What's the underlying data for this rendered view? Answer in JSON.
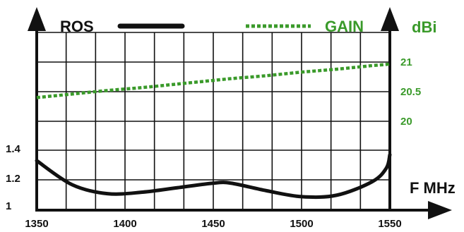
{
  "chart_data": {
    "type": "line",
    "x": [
      1350,
      1370,
      1390,
      1410,
      1430,
      1450,
      1460,
      1480,
      1500,
      1520,
      1540,
      1548,
      1550
    ],
    "series": [
      {
        "name": "ROS",
        "axis": "left",
        "color": "#111111",
        "style": "solid",
        "values": [
          1.33,
          1.17,
          1.11,
          1.12,
          1.15,
          1.18,
          1.18,
          1.13,
          1.09,
          1.1,
          1.19,
          1.28,
          1.37
        ]
      },
      {
        "name": "GAIN",
        "axis": "right",
        "color": "#3a9a2a",
        "style": "dashed",
        "values": [
          20.4,
          20.46,
          20.52,
          20.57,
          20.63,
          20.69,
          20.72,
          20.77,
          20.83,
          20.88,
          20.94,
          20.96,
          20.97
        ]
      }
    ],
    "xlabel": "F MHz",
    "ylabel_left": "",
    "ylabel_right": "dBi",
    "xlim": [
      1350,
      1550
    ],
    "ylim_left": [
      1,
      1.4
    ],
    "ylim_right": [
      20,
      21
    ],
    "x_ticks": [
      "1350",
      "1400",
      "1450",
      "1500",
      "1550"
    ],
    "y_ticks_left": [
      "1",
      "1.2",
      "1.4"
    ],
    "y_ticks_right": [
      "20",
      "20.5",
      "21"
    ],
    "grid": true,
    "legend": [
      {
        "label": "ROS",
        "color": "#111111",
        "style": "solid"
      },
      {
        "label": "GAIN",
        "color": "#3a9a2a",
        "style": "dashed"
      }
    ]
  }
}
